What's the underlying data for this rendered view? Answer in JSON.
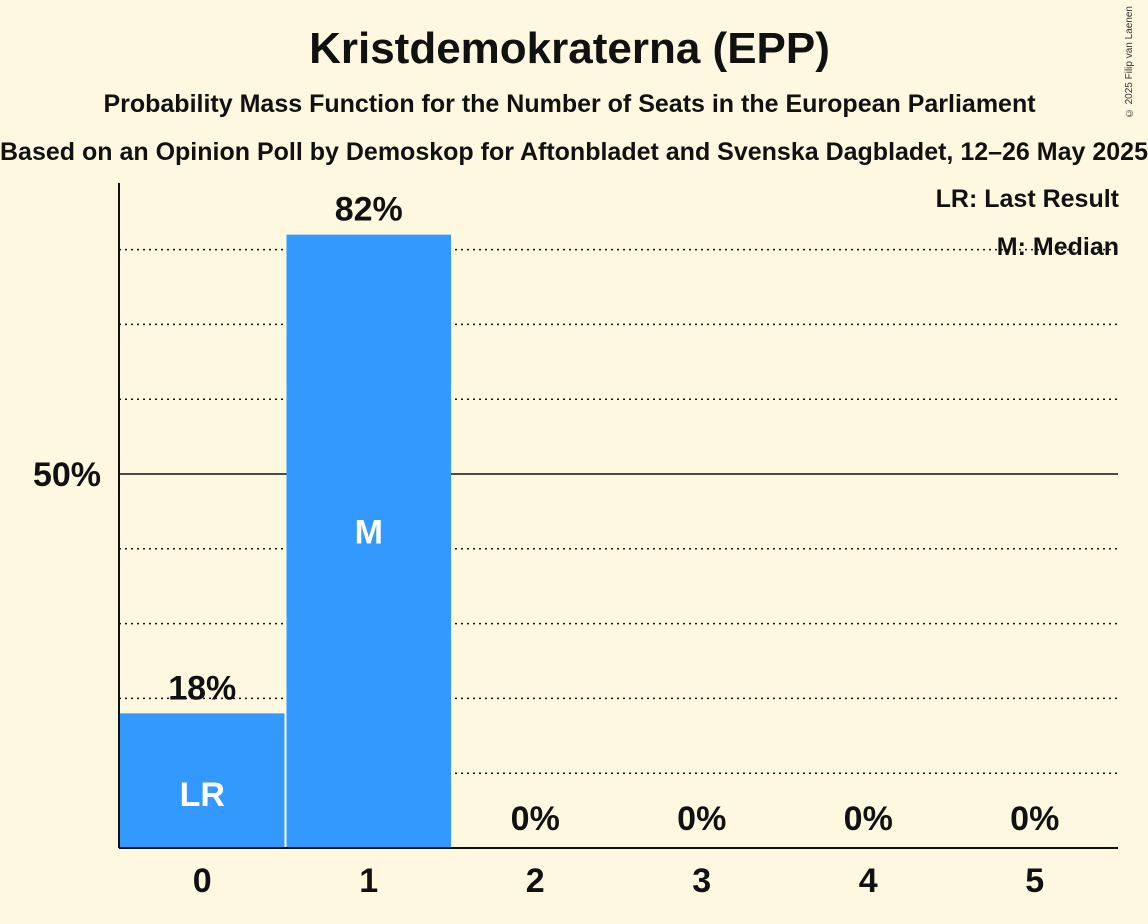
{
  "header": {
    "title": "Kristdemokraterna (EPP)",
    "subtitle": "Probability Mass Function for the Number of Seats in the European Parliament",
    "source": "Based on an Opinion Poll by Demoskop for Aftonbladet and Svenska Dagbladet, 12–26 May 2025",
    "copyright": "© 2025 Filip van Laenen"
  },
  "legend": {
    "last_result": "LR: Last Result",
    "median": "M: Median"
  },
  "colors": {
    "background": "#fff8e1",
    "bar": "#3399ff",
    "text": "#111111"
  },
  "chart_data": {
    "type": "bar",
    "title": "Kristdemokraterna (EPP)",
    "xlabel": "",
    "ylabel": "",
    "categories": [
      "0",
      "1",
      "2",
      "3",
      "4",
      "5"
    ],
    "values": [
      18,
      82,
      0,
      0,
      0,
      0
    ],
    "value_labels": [
      "18%",
      "82%",
      "0%",
      "0%",
      "0%",
      "0%"
    ],
    "bar_markers": [
      "LR",
      "M",
      "",
      "",
      "",
      ""
    ],
    "ylim": [
      0,
      90
    ],
    "y_tick_labels": [
      {
        "value": 50,
        "label": "50%"
      }
    ],
    "gridlines": [
      10,
      20,
      30,
      40,
      50,
      60,
      70,
      80
    ],
    "grid": true,
    "legend_placement": "top-right"
  }
}
